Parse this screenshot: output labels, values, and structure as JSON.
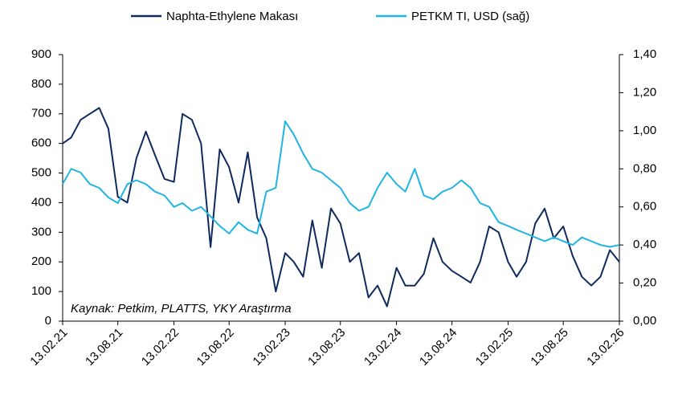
{
  "chart_data": {
    "type": "line",
    "annotation": "Kaynak: Petkim, PLATTS, YKY Araştırma",
    "x": [
      "13.02.21",
      "13.03.21",
      "13.04.21",
      "13.05.21",
      "13.06.21",
      "13.07.21",
      "13.08.21",
      "13.09.21",
      "13.10.21",
      "13.11.21",
      "13.12.21",
      "13.01.22",
      "13.02.22",
      "13.03.22",
      "13.04.22",
      "13.05.22",
      "13.06.22",
      "13.07.22",
      "13.08.22",
      "13.09.22",
      "13.10.22",
      "13.11.22",
      "13.12.22",
      "13.01.23",
      "13.02.23",
      "13.03.23",
      "13.04.23",
      "13.05.23",
      "13.06.23",
      "13.07.23",
      "13.08.23",
      "13.09.23",
      "13.10.23",
      "13.11.23",
      "13.12.23",
      "13.01.24",
      "13.02.24",
      "13.03.24",
      "13.04.24",
      "13.05.24",
      "13.06.24",
      "13.07.24",
      "13.08.24",
      "13.09.24",
      "13.10.24",
      "13.11.24",
      "13.12.24",
      "13.01.25",
      "13.02.25",
      "13.03.25",
      "13.04.25",
      "13.05.25",
      "13.06.25",
      "13.07.25",
      "13.08.25",
      "13.09.25",
      "13.10.25",
      "13.11.25",
      "13.12.25",
      "13.01.26",
      "13.02.26"
    ],
    "xlim": [
      "13.02.21",
      "13.02.26"
    ],
    "xticks": [
      "13.02.21",
      "13.08.21",
      "13.02.22",
      "13.08.22",
      "13.02.23",
      "13.08.23",
      "13.02.24",
      "13.08.24",
      "13.02.25",
      "13.08.25",
      "13.02.26"
    ],
    "ylim": [
      0,
      900
    ],
    "yticks": [
      0,
      100,
      200,
      300,
      400,
      500,
      600,
      700,
      800,
      900
    ],
    "y2lim": [
      0,
      1.4
    ],
    "y2ticks": [
      {
        "value": 0,
        "label": "0,00"
      },
      {
        "value": 0.2,
        "label": "0,20"
      },
      {
        "value": 0.4,
        "label": "0,40"
      },
      {
        "value": 0.6,
        "label": "0,60"
      },
      {
        "value": 0.8,
        "label": "0,80"
      },
      {
        "value": 1.0,
        "label": "1,00"
      },
      {
        "value": 1.2,
        "label": "1,20"
      },
      {
        "value": 1.4,
        "label": "1,40"
      }
    ],
    "series": [
      {
        "name": "Naphta-Ethylene Makası",
        "color": "#0f2a5f",
        "values": [
          600,
          620,
          680,
          700,
          720,
          650,
          420,
          400,
          550,
          640,
          560,
          480,
          470,
          700,
          680,
          600,
          250,
          580,
          520,
          400,
          570,
          350,
          280,
          100,
          230,
          200,
          150,
          340,
          180,
          380,
          330,
          200,
          230,
          80,
          120,
          50,
          180,
          120,
          120,
          160,
          280,
          200,
          170,
          150,
          130,
          200,
          320,
          300,
          200,
          150,
          200,
          330,
          380,
          280,
          320,
          220,
          150,
          120,
          150,
          240,
          200
        ]
      },
      {
        "name": "PETKM TI, USD (sağ)",
        "color": "#1fb4e6",
        "axis": "y2",
        "values": [
          0.72,
          0.8,
          0.78,
          0.72,
          0.7,
          0.65,
          0.62,
          0.72,
          0.74,
          0.72,
          0.68,
          0.66,
          0.6,
          0.62,
          0.58,
          0.6,
          0.55,
          0.5,
          0.46,
          0.52,
          0.48,
          0.46,
          0.68,
          0.7,
          1.05,
          0.98,
          0.88,
          0.8,
          0.78,
          0.74,
          0.7,
          0.62,
          0.58,
          0.6,
          0.7,
          0.78,
          0.72,
          0.68,
          0.8,
          0.66,
          0.64,
          0.68,
          0.7,
          0.74,
          0.7,
          0.62,
          0.6,
          0.52,
          0.5,
          0.48,
          0.46,
          0.44,
          0.42,
          0.44,
          0.42,
          0.4,
          0.44,
          0.42,
          0.4,
          0.39,
          0.4
        ]
      }
    ]
  }
}
